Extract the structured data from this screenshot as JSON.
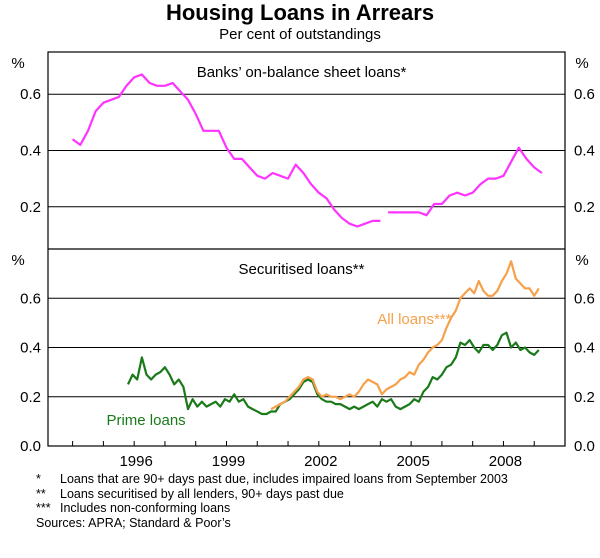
{
  "title": "Housing Loans in Arrears",
  "subtitle": "Per cent of outstandings",
  "chart_data": [
    {
      "type": "line",
      "panel_title": "Banks’ on-balance sheet loans*",
      "ylabel_left": "%",
      "ylabel_right": "%",
      "ylim": [
        0.05,
        0.75
      ],
      "yticks": [
        "0.2",
        "0.4",
        "0.6"
      ],
      "ytick_values": [
        0.2,
        0.4,
        0.6
      ],
      "grid": true,
      "series": [
        {
          "color": "#ff33ff",
          "segments": [
            [
              [
                1994.0,
                0.44
              ],
              [
                1994.25,
                0.42
              ],
              [
                1994.5,
                0.47
              ],
              [
                1994.75,
                0.54
              ],
              [
                1995.0,
                0.57
              ],
              [
                1995.25,
                0.58
              ],
              [
                1995.5,
                0.59
              ],
              [
                1995.75,
                0.63
              ],
              [
                1996.0,
                0.66
              ],
              [
                1996.25,
                0.67
              ],
              [
                1996.5,
                0.64
              ],
              [
                1996.75,
                0.63
              ],
              [
                1997.0,
                0.63
              ],
              [
                1997.25,
                0.64
              ],
              [
                1997.5,
                0.61
              ],
              [
                1997.75,
                0.58
              ],
              [
                1998.0,
                0.53
              ],
              [
                1998.25,
                0.47
              ],
              [
                1998.5,
                0.47
              ],
              [
                1998.75,
                0.47
              ],
              [
                1999.0,
                0.41
              ],
              [
                1999.25,
                0.37
              ],
              [
                1999.5,
                0.37
              ],
              [
                1999.75,
                0.34
              ],
              [
                2000.0,
                0.31
              ],
              [
                2000.25,
                0.3
              ],
              [
                2000.5,
                0.32
              ],
              [
                2000.75,
                0.31
              ],
              [
                2001.0,
                0.3
              ],
              [
                2001.25,
                0.35
              ],
              [
                2001.5,
                0.32
              ],
              [
                2001.75,
                0.28
              ],
              [
                2002.0,
                0.25
              ],
              [
                2002.25,
                0.23
              ],
              [
                2002.5,
                0.19
              ],
              [
                2002.75,
                0.16
              ],
              [
                2003.0,
                0.14
              ],
              [
                2003.25,
                0.13
              ],
              [
                2003.5,
                0.14
              ],
              [
                2003.75,
                0.15
              ],
              [
                2004.0,
                0.15
              ]
            ],
            [
              [
                2004.25,
                0.18
              ],
              [
                2004.5,
                0.18
              ],
              [
                2004.75,
                0.18
              ],
              [
                2005.0,
                0.18
              ],
              [
                2005.25,
                0.18
              ],
              [
                2005.5,
                0.17
              ],
              [
                2005.75,
                0.21
              ],
              [
                2006.0,
                0.21
              ],
              [
                2006.25,
                0.24
              ],
              [
                2006.5,
                0.25
              ],
              [
                2006.75,
                0.24
              ],
              [
                2007.0,
                0.25
              ],
              [
                2007.25,
                0.28
              ],
              [
                2007.5,
                0.3
              ],
              [
                2007.75,
                0.3
              ],
              [
                2008.0,
                0.31
              ],
              [
                2008.25,
                0.36
              ],
              [
                2008.5,
                0.41
              ],
              [
                2008.75,
                0.37
              ],
              [
                2009.0,
                0.34
              ],
              [
                2009.25,
                0.32
              ]
            ]
          ]
        }
      ]
    },
    {
      "type": "line",
      "panel_title": "Securitised loans**",
      "ylabel_left": "%",
      "ylabel_right": "%",
      "ylim": [
        0.0,
        0.8
      ],
      "yticks": [
        "0.0",
        "0.2",
        "0.4",
        "0.6"
      ],
      "ytick_values": [
        0.0,
        0.2,
        0.4,
        0.6
      ],
      "xlim": [
        1993.2,
        2010.0
      ],
      "xticks": [
        "1996",
        "1999",
        "2002",
        "2005",
        "2008"
      ],
      "xtick_values": [
        1996,
        1999,
        2002,
        2005,
        2008
      ],
      "grid": true,
      "series": [
        {
          "name": "Prime loans",
          "color": "#1a7a1a",
          "points": [
            [
              1995.8,
              0.25
            ],
            [
              1995.95,
              0.29
            ],
            [
              1996.1,
              0.27
            ],
            [
              1996.25,
              0.36
            ],
            [
              1996.4,
              0.29
            ],
            [
              1996.55,
              0.27
            ],
            [
              1996.7,
              0.29
            ],
            [
              1996.85,
              0.3
            ],
            [
              1997.0,
              0.32
            ],
            [
              1997.15,
              0.29
            ],
            [
              1997.3,
              0.25
            ],
            [
              1997.45,
              0.27
            ],
            [
              1997.6,
              0.24
            ],
            [
              1997.75,
              0.15
            ],
            [
              1997.9,
              0.19
            ],
            [
              1998.05,
              0.16
            ],
            [
              1998.2,
              0.18
            ],
            [
              1998.35,
              0.16
            ],
            [
              1998.5,
              0.17
            ],
            [
              1998.65,
              0.18
            ],
            [
              1998.8,
              0.16
            ],
            [
              1998.95,
              0.19
            ],
            [
              1999.1,
              0.18
            ],
            [
              1999.25,
              0.21
            ],
            [
              1999.4,
              0.18
            ],
            [
              1999.55,
              0.19
            ],
            [
              1999.7,
              0.16
            ],
            [
              1999.85,
              0.15
            ],
            [
              2000.0,
              0.14
            ],
            [
              2000.15,
              0.13
            ],
            [
              2000.3,
              0.13
            ],
            [
              2000.45,
              0.14
            ],
            [
              2000.6,
              0.14
            ],
            [
              2000.75,
              0.17
            ],
            [
              2000.9,
              0.18
            ],
            [
              2001.05,
              0.19
            ],
            [
              2001.2,
              0.21
            ],
            [
              2001.35,
              0.23
            ],
            [
              2001.5,
              0.26
            ],
            [
              2001.65,
              0.27
            ],
            [
              2001.8,
              0.26
            ],
            [
              2001.95,
              0.21
            ],
            [
              2002.1,
              0.19
            ],
            [
              2002.25,
              0.18
            ],
            [
              2002.4,
              0.18
            ],
            [
              2002.55,
              0.17
            ],
            [
              2002.7,
              0.17
            ],
            [
              2002.85,
              0.16
            ],
            [
              2003.0,
              0.15
            ],
            [
              2003.15,
              0.16
            ],
            [
              2003.3,
              0.15
            ],
            [
              2003.45,
              0.16
            ],
            [
              2003.6,
              0.17
            ],
            [
              2003.75,
              0.18
            ],
            [
              2003.9,
              0.16
            ],
            [
              2004.05,
              0.19
            ],
            [
              2004.2,
              0.18
            ],
            [
              2004.35,
              0.19
            ],
            [
              2004.5,
              0.16
            ],
            [
              2004.65,
              0.15
            ],
            [
              2004.8,
              0.16
            ],
            [
              2004.95,
              0.17
            ],
            [
              2005.1,
              0.19
            ],
            [
              2005.25,
              0.18
            ],
            [
              2005.4,
              0.22
            ],
            [
              2005.55,
              0.24
            ],
            [
              2005.7,
              0.28
            ],
            [
              2005.85,
              0.27
            ],
            [
              2006.0,
              0.29
            ],
            [
              2006.15,
              0.32
            ],
            [
              2006.3,
              0.33
            ],
            [
              2006.45,
              0.36
            ],
            [
              2006.6,
              0.42
            ],
            [
              2006.75,
              0.41
            ],
            [
              2006.9,
              0.43
            ],
            [
              2007.05,
              0.4
            ],
            [
              2007.2,
              0.38
            ],
            [
              2007.35,
              0.41
            ],
            [
              2007.5,
              0.41
            ],
            [
              2007.65,
              0.39
            ],
            [
              2007.8,
              0.41
            ],
            [
              2007.95,
              0.45
            ],
            [
              2008.1,
              0.46
            ],
            [
              2008.25,
              0.4
            ],
            [
              2008.4,
              0.42
            ],
            [
              2008.55,
              0.39
            ],
            [
              2008.7,
              0.4
            ],
            [
              2008.85,
              0.38
            ],
            [
              2009.0,
              0.37
            ],
            [
              2009.15,
              0.39
            ]
          ]
        },
        {
          "name": "All loans***",
          "color": "#f7a04a",
          "points": [
            [
              2000.45,
              0.15
            ],
            [
              2000.6,
              0.16
            ],
            [
              2000.75,
              0.17
            ],
            [
              2000.9,
              0.18
            ],
            [
              2001.05,
              0.2
            ],
            [
              2001.2,
              0.22
            ],
            [
              2001.35,
              0.24
            ],
            [
              2001.5,
              0.27
            ],
            [
              2001.65,
              0.28
            ],
            [
              2001.8,
              0.27
            ],
            [
              2001.95,
              0.22
            ],
            [
              2002.1,
              0.2
            ],
            [
              2002.25,
              0.21
            ],
            [
              2002.4,
              0.2
            ],
            [
              2002.55,
              0.2
            ],
            [
              2002.7,
              0.19
            ],
            [
              2002.85,
              0.2
            ],
            [
              2003.0,
              0.21
            ],
            [
              2003.15,
              0.2
            ],
            [
              2003.3,
              0.22
            ],
            [
              2003.45,
              0.25
            ],
            [
              2003.6,
              0.27
            ],
            [
              2003.75,
              0.26
            ],
            [
              2003.9,
              0.25
            ],
            [
              2004.05,
              0.21
            ],
            [
              2004.2,
              0.23
            ],
            [
              2004.35,
              0.24
            ],
            [
              2004.5,
              0.25
            ],
            [
              2004.65,
              0.27
            ],
            [
              2004.8,
              0.28
            ],
            [
              2004.95,
              0.3
            ],
            [
              2005.1,
              0.29
            ],
            [
              2005.25,
              0.33
            ],
            [
              2005.4,
              0.35
            ],
            [
              2005.55,
              0.38
            ],
            [
              2005.7,
              0.4
            ],
            [
              2005.85,
              0.41
            ],
            [
              2006.0,
              0.43
            ],
            [
              2006.15,
              0.48
            ],
            [
              2006.3,
              0.52
            ],
            [
              2006.45,
              0.55
            ],
            [
              2006.6,
              0.6
            ],
            [
              2006.75,
              0.62
            ],
            [
              2006.9,
              0.64
            ],
            [
              2007.05,
              0.62
            ],
            [
              2007.2,
              0.67
            ],
            [
              2007.35,
              0.63
            ],
            [
              2007.5,
              0.61
            ],
            [
              2007.65,
              0.61
            ],
            [
              2007.8,
              0.63
            ],
            [
              2007.95,
              0.67
            ],
            [
              2008.1,
              0.7
            ],
            [
              2008.25,
              0.75
            ],
            [
              2008.4,
              0.68
            ],
            [
              2008.55,
              0.66
            ],
            [
              2008.7,
              0.64
            ],
            [
              2008.85,
              0.64
            ],
            [
              2009.0,
              0.61
            ],
            [
              2009.15,
              0.64
            ]
          ]
        }
      ]
    }
  ],
  "footnotes": [
    {
      "mark": "*",
      "text": "Loans that are 90+ days past due, includes impaired loans from September 2003"
    },
    {
      "mark": "**",
      "text": "Loans securitised by all lenders, 90+ days past due"
    },
    {
      "mark": "***",
      "text": "Includes non-conforming loans"
    },
    {
      "mark": "",
      "text": "Sources: APRA; Standard & Poor’s"
    }
  ]
}
